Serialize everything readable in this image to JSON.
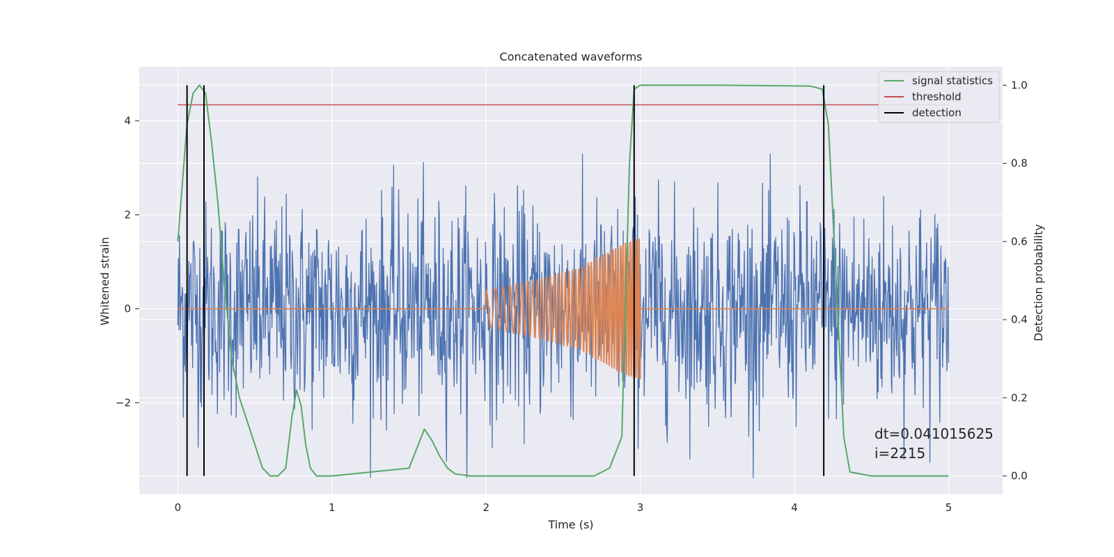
{
  "chart_data": {
    "type": "line",
    "title": "Concatenated waveforms",
    "xlabel": "Time (s)",
    "ylabel": "Whitened strain",
    "y2label": "Detection probability",
    "xlim": [
      -0.25,
      5.35
    ],
    "ylim": [
      -3.95,
      5.15
    ],
    "y2lim": [
      -0.047,
      1.047
    ],
    "x_ticks": [
      0,
      1,
      2,
      3,
      4,
      5
    ],
    "y_ticks": [
      -2,
      0,
      2,
      4
    ],
    "y2_ticks": [
      0.0,
      0.2,
      0.4,
      0.6,
      0.8,
      1.0
    ],
    "y_tick_labels": [
      "−2",
      "0",
      "2",
      "4"
    ],
    "y2_tick_labels": [
      "0.0",
      "0.2",
      "0.4",
      "0.6",
      "0.8",
      "1.0"
    ],
    "x_tick_labels": [
      "0",
      "1",
      "2",
      "3",
      "4",
      "5"
    ],
    "grid": true,
    "legend_position": "top-right",
    "colors": {
      "background": "#eaeaf2",
      "strain": "#4c72b0",
      "template": "#dd8452",
      "signal_statistics": "#55a868",
      "threshold": "#c44e52",
      "detection": "#000000"
    },
    "strain": {
      "x_range": [
        0,
        5
      ],
      "approx_min": -3.6,
      "approx_max": 3.3,
      "typical_amplitude": 1.5
    },
    "template": {
      "x": [
        0,
        2.0,
        2.3,
        2.6,
        2.9,
        3.0,
        5.0
      ],
      "amplitude": [
        0,
        0.4,
        0.6,
        0.85,
        1.4,
        1.5,
        0
      ],
      "chirp_start": 2.0,
      "chirp_end": 3.0
    },
    "threshold": {
      "value": 0.95,
      "x_range": [
        0,
        5
      ]
    },
    "signal_statistics": {
      "x": [
        0.0,
        0.03,
        0.06,
        0.1,
        0.14,
        0.18,
        0.22,
        0.26,
        0.3,
        0.35,
        0.4,
        0.45,
        0.5,
        0.55,
        0.6,
        0.65,
        0.7,
        0.74,
        0.77,
        0.8,
        0.83,
        0.86,
        0.9,
        1.0,
        1.5,
        1.55,
        1.6,
        1.65,
        1.7,
        1.75,
        1.8,
        1.9,
        2.0,
        2.7,
        2.8,
        2.88,
        2.93,
        2.96,
        3.0,
        3.5,
        4.1,
        4.18,
        4.22,
        4.27,
        4.32,
        4.36,
        4.5,
        5.0
      ],
      "values": [
        0.6,
        0.75,
        0.9,
        0.98,
        1.0,
        0.98,
        0.85,
        0.7,
        0.5,
        0.3,
        0.2,
        0.14,
        0.08,
        0.02,
        0.0,
        0.0,
        0.02,
        0.15,
        0.22,
        0.18,
        0.08,
        0.02,
        0.0,
        0.0,
        0.02,
        0.07,
        0.12,
        0.09,
        0.05,
        0.02,
        0.005,
        0.0,
        0.0,
        0.0,
        0.02,
        0.1,
        0.8,
        0.99,
        1.0,
        1.0,
        0.998,
        0.99,
        0.9,
        0.5,
        0.1,
        0.01,
        0.0,
        0.0
      ]
    },
    "detections": [
      0.06,
      0.17,
      2.96,
      4.19
    ],
    "legend": [
      "signal statistics",
      "threshold",
      "detection"
    ],
    "annotation": "dt=0.041015625\n i=2215"
  }
}
